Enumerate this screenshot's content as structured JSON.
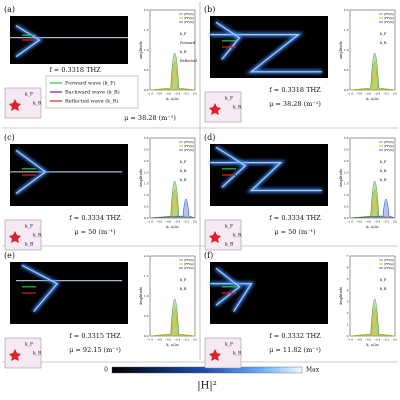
{
  "panels": [
    {
      "label": "(a)",
      "frequency": "f = 0.3318 THZ",
      "mu": "μ = 38.28 (m⁻¹)",
      "inset": {
        "ylabel": "amplitude",
        "xlabel": "k, a/2π",
        "legend": [
          "|FF(k)|",
          "|FF(k)|",
          "|FF(k)|"
        ],
        "yticks": [
          "0.0",
          "0.5",
          "1.0",
          "1.5",
          "2.0"
        ],
        "notes": [
          "k_F",
          "Forward",
          "k_R",
          "Reflected"
        ]
      },
      "schematic": [
        "k_F",
        "k_R"
      ]
    },
    {
      "label": "(b)",
      "frequency": "f = 0.3318 THZ",
      "mu": "μ = 38.28 (m⁻¹)",
      "inset": {
        "ylabel": "amplitude",
        "xlabel": "k, a/2π",
        "legend": [
          "|FF(k)|",
          "|FF(k)|",
          "|FF(k)|"
        ],
        "yticks": [
          "0.0",
          "0.5",
          "1.0",
          "1.5",
          "2.0"
        ],
        "notes": [
          "k_F",
          "k_R"
        ]
      },
      "schematic": [
        "k_F",
        "k_R"
      ]
    },
    {
      "label": "(c)",
      "frequency": "f = 0.3334 THZ",
      "mu": "μ = 50 (m⁻¹)",
      "inset": {
        "ylabel": "Amplitude",
        "xlabel": "k, a/2π",
        "legend": [
          "|FF(k)|",
          "|FF(k)|",
          "|FF(k)|"
        ],
        "yticks": [
          "0.0",
          "0.5",
          "1.0",
          "1.5",
          "2.0",
          "2.5",
          "3.0",
          "3.5"
        ],
        "notes": [
          "k_F",
          "k_B",
          "k_R"
        ]
      },
      "schematic": [
        "k_F",
        "k_R",
        "k_B"
      ]
    },
    {
      "label": "(d)",
      "frequency": "f = 0.3334 THZ",
      "mu": "μ = 50 (m⁻¹)",
      "inset": {
        "ylabel": "Amplitude",
        "xlabel": "k, a/2π",
        "legend": [
          "|FF(k)|",
          "|FF(k)|",
          "|FF(k)|"
        ],
        "yticks": [
          "0.0",
          "0.5",
          "1.0",
          "1.5",
          "2.0",
          "2.5",
          "3.0",
          "3.5"
        ],
        "notes": [
          "k_F",
          "k_B",
          "k_R"
        ]
      },
      "schematic": [
        "k_F",
        "k_R",
        "k_B"
      ]
    },
    {
      "label": "(e)",
      "frequency": "f = 0.3315 THZ",
      "mu": "μ = 92.15 (m⁻¹)",
      "inset": {
        "ylabel": "Amplitude",
        "xlabel": "k, a/2π",
        "legend": [
          "|FF(k)|",
          "|FF(k)|",
          "|FF(k)|"
        ],
        "yticks": [
          "0.0",
          "0.5",
          "1.0",
          "1.5",
          "2.0"
        ],
        "notes": [
          "k_F",
          "k_R"
        ]
      },
      "schematic": [
        "k_F",
        "k_R"
      ]
    },
    {
      "label": "(f)",
      "frequency": "f = 0.3332 THZ",
      "mu": "μ = 11.82 (m⁻¹)",
      "inset": {
        "ylabel": "Amplitude",
        "xlabel": "k, a/2π",
        "legend": [
          "|FF(k)|",
          "|FF(k)|",
          "|FF(k)|"
        ],
        "yticks": [
          "0",
          "1",
          "2",
          "3",
          "4",
          "5",
          "6",
          "7"
        ],
        "notes": [
          "k_F",
          "k_R"
        ]
      },
      "schematic": [
        "k_F",
        "k_R"
      ]
    }
  ],
  "insetXTicks": [
    "−1.0",
    "−0.8",
    "−0.6",
    "−0.4",
    "−0.2",
    "0.0"
  ],
  "legend": [
    "Forward wave (k_F)",
    "Backward wave (k_B)",
    "Reflected wave (k_R)"
  ],
  "colorbar": {
    "min": "0",
    "label": "|H|²",
    "max": "Max"
  }
}
